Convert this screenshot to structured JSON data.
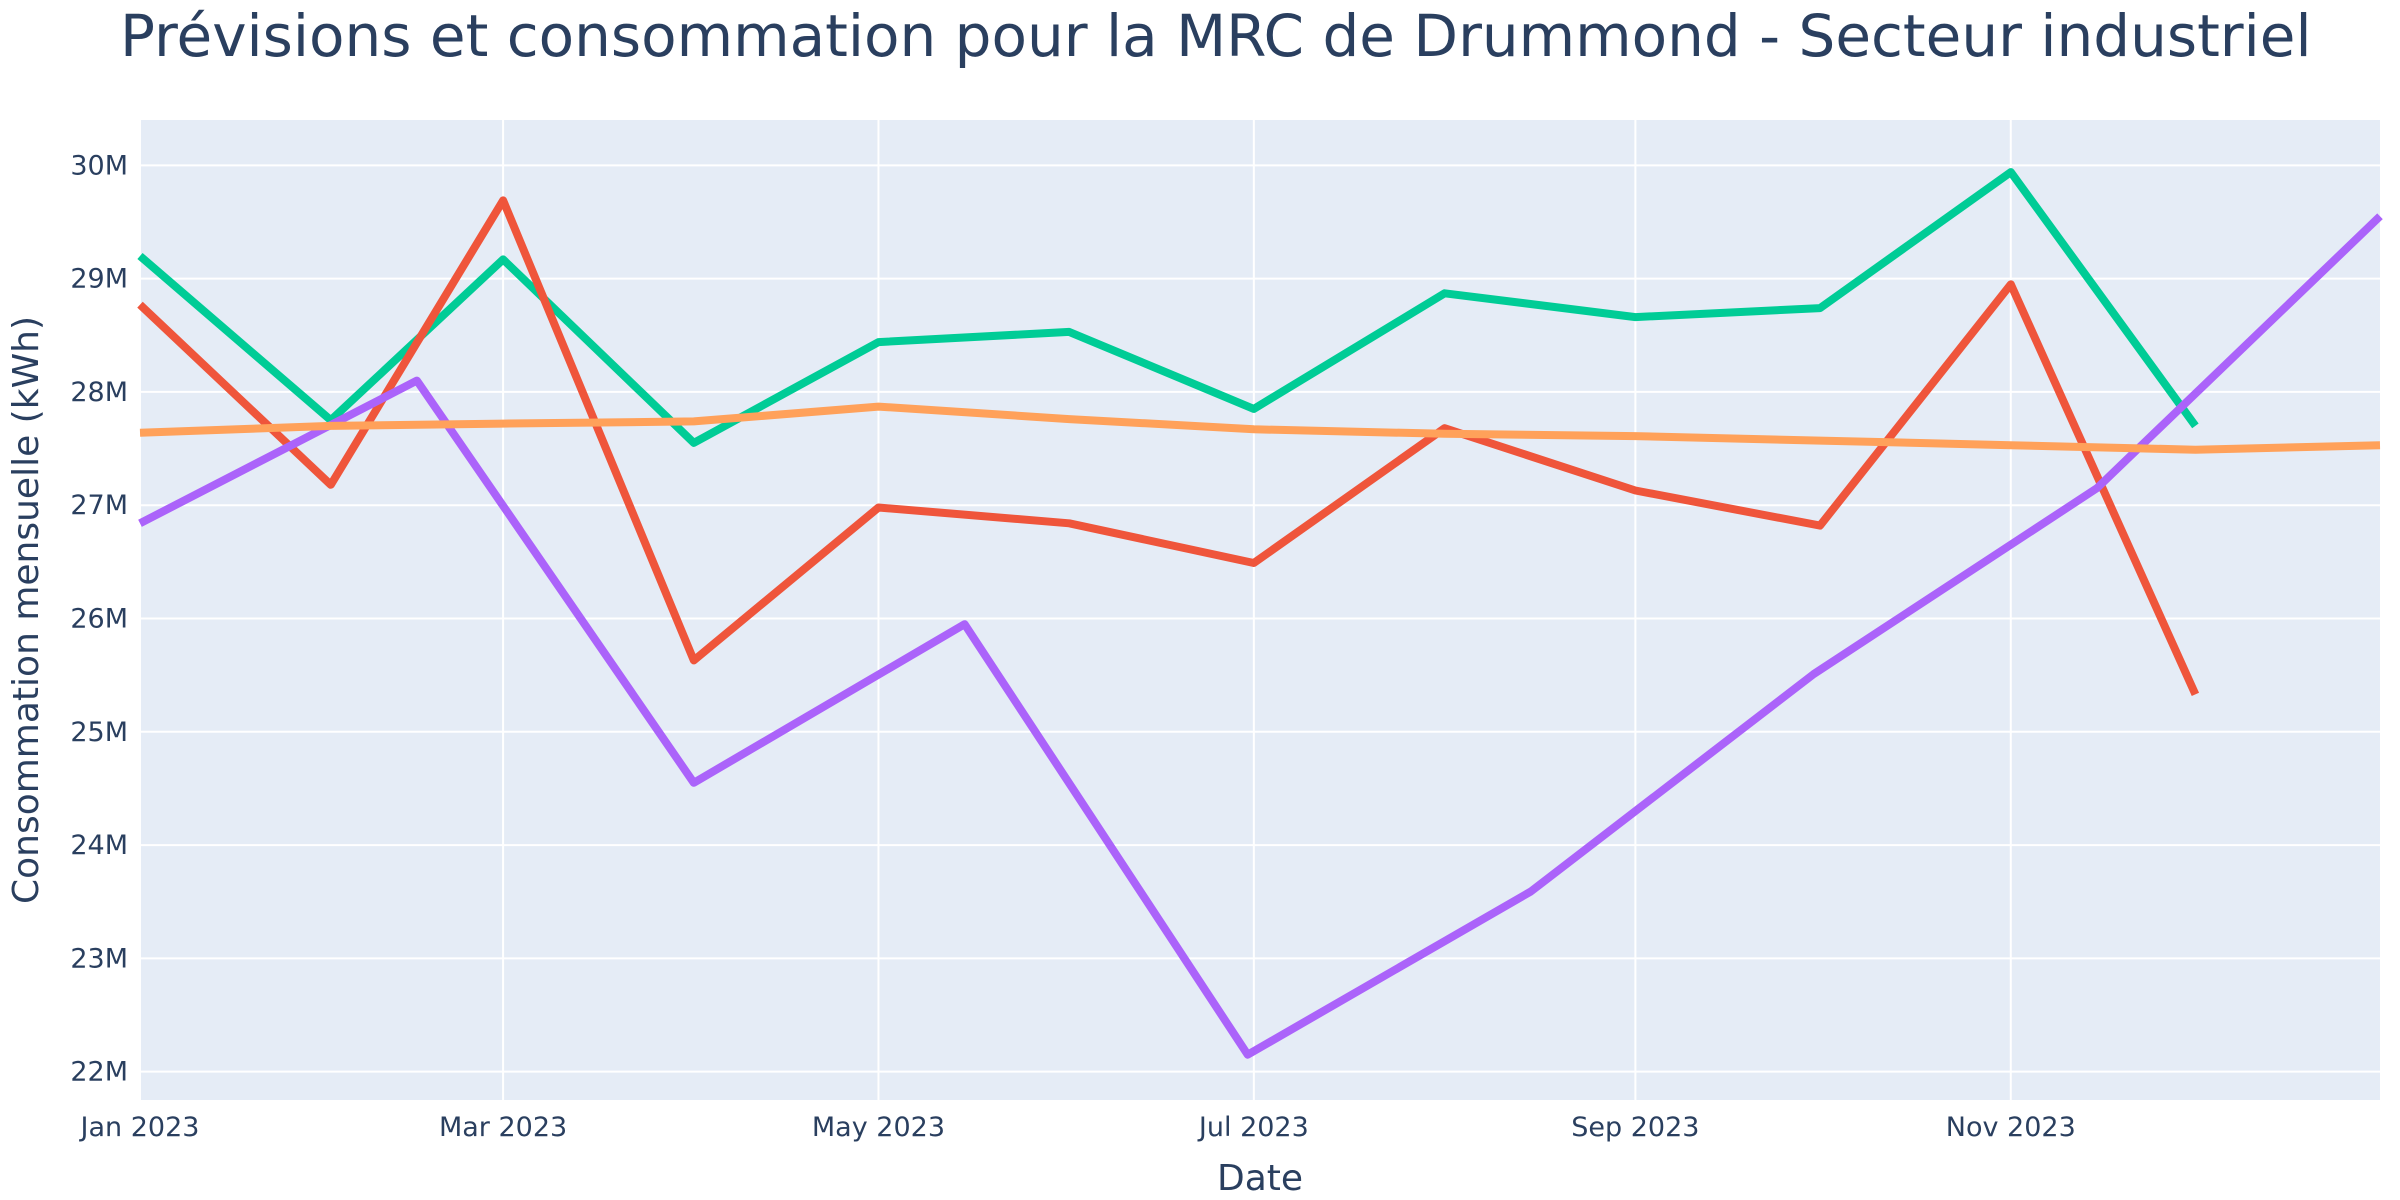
{
  "chart_data": {
    "type": "line",
    "title": "Prévisions et consommation pour la MRC de Drummond - Secteur industriel",
    "xlabel": "Date",
    "ylabel": "Consommation mensuelle (kWh)",
    "xlim": [
      "2023-01-01",
      "2023-12-31"
    ],
    "ylim": [
      21750000,
      30400000
    ],
    "x_ticks": [
      {
        "date": "2023-01-01",
        "label": "Jan 2023"
      },
      {
        "date": "2023-03-01",
        "label": "Mar 2023"
      },
      {
        "date": "2023-05-01",
        "label": "May 2023"
      },
      {
        "date": "2023-07-01",
        "label": "Jul 2023"
      },
      {
        "date": "2023-09-01",
        "label": "Sep 2023"
      },
      {
        "date": "2023-11-01",
        "label": "Nov 2023"
      }
    ],
    "y_ticks": [
      {
        "value": 22000000,
        "label": "22M"
      },
      {
        "value": 23000000,
        "label": "23M"
      },
      {
        "value": 24000000,
        "label": "24M"
      },
      {
        "value": 25000000,
        "label": "25M"
      },
      {
        "value": 26000000,
        "label": "26M"
      },
      {
        "value": 27000000,
        "label": "27M"
      },
      {
        "value": 28000000,
        "label": "28M"
      },
      {
        "value": 29000000,
        "label": "29M"
      },
      {
        "value": 30000000,
        "label": "30M"
      }
    ],
    "grid": true,
    "legend": "none",
    "series": [
      {
        "color": "#00cc96",
        "points": [
          [
            "2023-01-01",
            29200000
          ],
          [
            "2023-02-01",
            27750000
          ],
          [
            "2023-03-01",
            29170000
          ],
          [
            "2023-04-01",
            27550000
          ],
          [
            "2023-05-01",
            28440000
          ],
          [
            "2023-06-01",
            28530000
          ],
          [
            "2023-07-01",
            27850000
          ],
          [
            "2023-08-01",
            28870000
          ],
          [
            "2023-09-01",
            28660000
          ],
          [
            "2023-10-01",
            28740000
          ],
          [
            "2023-11-01",
            29940000
          ],
          [
            "2023-12-01",
            27700000
          ]
        ]
      },
      {
        "color": "#ef553b",
        "points": [
          [
            "2023-01-01",
            28770000
          ],
          [
            "2023-02-01",
            27180000
          ],
          [
            "2023-03-01",
            29690000
          ],
          [
            "2023-04-01",
            25630000
          ],
          [
            "2023-05-01",
            26980000
          ],
          [
            "2023-06-01",
            26840000
          ],
          [
            "2023-07-01",
            26490000
          ],
          [
            "2023-08-01",
            27680000
          ],
          [
            "2023-09-01",
            27130000
          ],
          [
            "2023-10-01",
            26820000
          ],
          [
            "2023-11-01",
            28950000
          ],
          [
            "2023-12-01",
            25330000
          ]
        ]
      },
      {
        "color": "#ab63fa",
        "points": [
          [
            "2023-01-01",
            26840000
          ],
          [
            "2023-02-15",
            28100000
          ],
          [
            "2023-04-01",
            24550000
          ],
          [
            "2023-05-15",
            25950000
          ],
          [
            "2023-06-30",
            22150000
          ],
          [
            "2023-08-15",
            23590000
          ],
          [
            "2023-09-30",
            25510000
          ],
          [
            "2023-11-15",
            27150000
          ],
          [
            "2023-12-31",
            29550000
          ]
        ]
      },
      {
        "color": "#ffa15a",
        "points": [
          [
            "2023-01-01",
            27640000
          ],
          [
            "2023-02-01",
            27700000
          ],
          [
            "2023-03-01",
            27720000
          ],
          [
            "2023-04-01",
            27740000
          ],
          [
            "2023-05-01",
            27870000
          ],
          [
            "2023-06-01",
            27760000
          ],
          [
            "2023-07-01",
            27670000
          ],
          [
            "2023-08-01",
            27630000
          ],
          [
            "2023-09-01",
            27610000
          ],
          [
            "2023-10-01",
            27570000
          ],
          [
            "2023-11-01",
            27530000
          ],
          [
            "2023-12-01",
            27490000
          ],
          [
            "2023-12-31",
            27530000
          ]
        ]
      }
    ],
    "colors": {
      "plot_bg": "#e5ecf6",
      "grid": "#ffffff",
      "text": "#2a3f5f"
    }
  }
}
